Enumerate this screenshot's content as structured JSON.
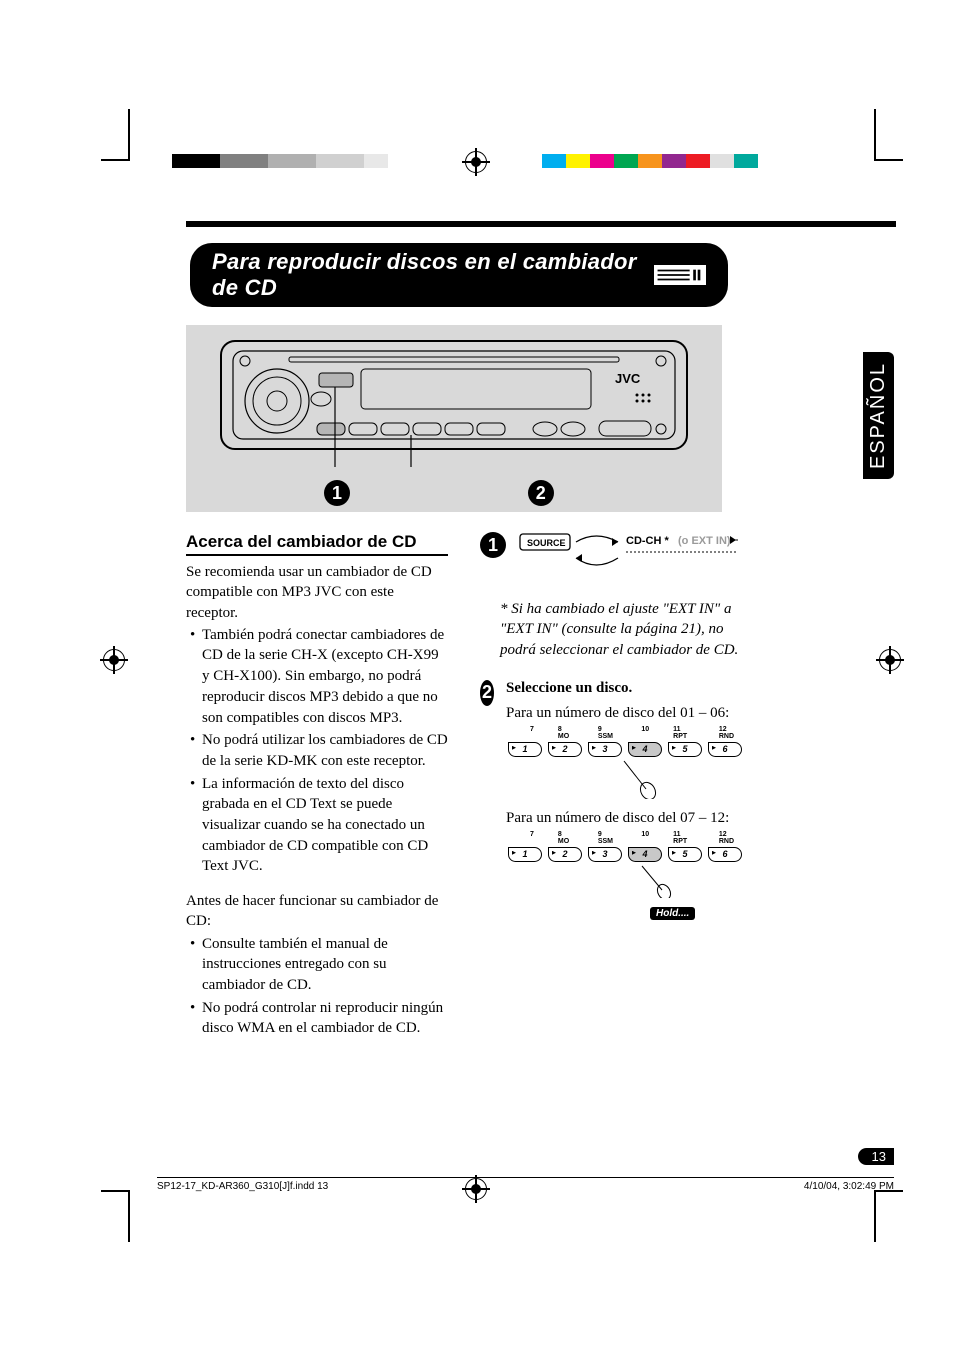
{
  "language_tab": "ESPAÑOL",
  "page_number": "13",
  "title": "Para reproducir discos en el cambiador de CD",
  "brand_on_radio": "JVC",
  "color_bars": {
    "left": [
      "#000000",
      "#000000",
      "#808080",
      "#808080",
      "#b0b0b0",
      "#b0b0b0",
      "#d0d0d0",
      "#d0d0d0",
      "#e8e8e8"
    ],
    "right": [
      "#00aeef",
      "#fff200",
      "#ec008c",
      "#00a651",
      "#f7941d",
      "#92278f",
      "#ed1c24",
      "#e0e0e0",
      "#00a99d"
    ]
  },
  "section": {
    "heading": "Acerca del cambiador de CD",
    "intro": "Se recomienda usar un cambiador de CD compatible con MP3 JVC con este receptor.",
    "bullets_a": [
      "También podrá conectar cambiadores de CD de la serie CH-X (excepto CH-X99 y CH-X100). Sin embargo, no podrá reproducir discos MP3 debido a que no son compatibles con discos MP3.",
      "No podrá utilizar los cambiadores de CD de la serie KD-MK con este receptor.",
      "La información de texto del disco grabada en el CD Text se puede visualizar cuando se ha conectado un cambiador de CD compatible con CD Text JVC."
    ],
    "pre_note": "Antes de hacer funcionar su cambiador de CD:",
    "bullets_b": [
      "Consulte también el manual de instrucciones entregado con su cambiador de CD.",
      "No podrá controlar ni reproducir ningún disco WMA en el cambiador de CD."
    ]
  },
  "step1": {
    "source_label": "SOURCE",
    "target": "CD-CH *",
    "target_grey": "(o EXT IN)",
    "footnote": "* Si ha cambiado el ajuste \"EXT IN\" a \"EXT IN\" (consulte la página 21), no podrá seleccionar el cambiador de CD."
  },
  "step2": {
    "heading": "Seleccione un disco.",
    "range_a": "Para un número de disco del 01 – 06:",
    "range_b": "Para un número de disco del 07 – 12:",
    "top_labels": [
      "7",
      "8 MO",
      "9 SSM",
      "10",
      "11 RPT",
      "12 RND"
    ],
    "buttons": [
      "1",
      "2",
      "3",
      "4",
      "5",
      "6"
    ],
    "hold_label": "Hold...."
  },
  "footer": {
    "file": "SP12-17_KD-AR360_G310[J]f.indd   13",
    "timestamp": "4/10/04, 3:02:49 PM"
  },
  "colors": {
    "page_bg": "#ffffff",
    "title_bg": "#000000",
    "title_fg": "#ffffff",
    "radio_panel_bg": "#d9d9d9",
    "grey_text": "#9a9a9a"
  },
  "typography": {
    "body_font": "Times New Roman",
    "ui_font": "Arial",
    "body_size_pt": 11,
    "title_size_pt": 17,
    "section_heading_size_pt": 13
  }
}
